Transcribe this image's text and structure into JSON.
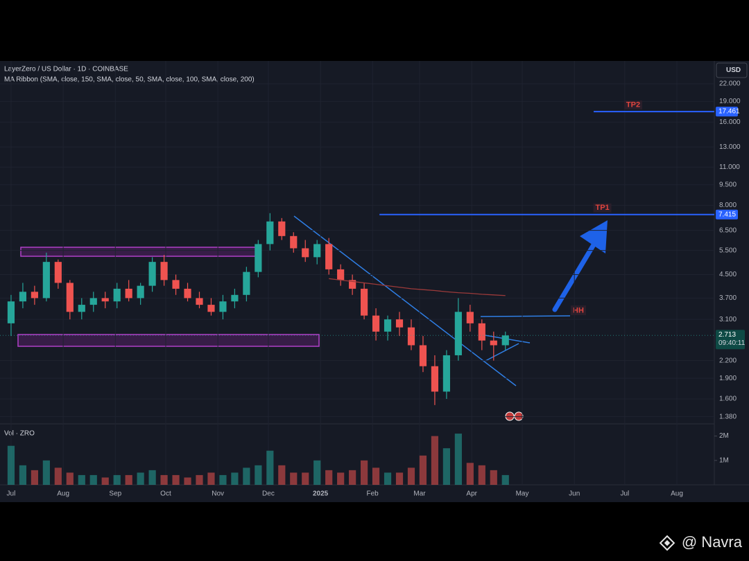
{
  "chart_data": {
    "type": "candlestick",
    "title": "LayerZero / US Dollar · 1D · COINBASE",
    "subtitle": "MA Ribbon (SMA, close, 150, SMA, close, 50, SMA, close, 100, SMA, close, 200)",
    "currency": "USD",
    "log_scale": true,
    "grid": true,
    "ylim": [
      1.3,
      26.6
    ],
    "yticks": [
      {
        "value": 22,
        "label": "22.000"
      },
      {
        "value": 19,
        "label": "19.000"
      },
      {
        "value": 16,
        "label": "16.000"
      },
      {
        "value": 13,
        "label": "13.000"
      },
      {
        "value": 11,
        "label": "11.000"
      },
      {
        "value": 9.5,
        "label": "9.500"
      },
      {
        "value": 8,
        "label": "8.000"
      },
      {
        "value": 6.5,
        "label": "6.500"
      },
      {
        "value": 5.5,
        "label": "5.500"
      },
      {
        "value": 4.5,
        "label": "4.500"
      },
      {
        "value": 3.7,
        "label": "3.700"
      },
      {
        "value": 3.1,
        "label": "3.100"
      },
      {
        "value": 2.2,
        "label": "2.200"
      },
      {
        "value": 1.9,
        "label": "1.900"
      },
      {
        "value": 1.6,
        "label": "1.600"
      },
      {
        "value": 1.38,
        "label": "1.380"
      }
    ],
    "xlim": [
      -0.94,
      59.75
    ],
    "xticks": [
      {
        "value": 0,
        "label": "Jul"
      },
      {
        "value": 4.43,
        "label": "Aug"
      },
      {
        "value": 8.86,
        "label": "Sep"
      },
      {
        "value": 13.14,
        "label": "Oct"
      },
      {
        "value": 17.57,
        "label": "Nov"
      },
      {
        "value": 21.86,
        "label": "Dec"
      },
      {
        "value": 26.29,
        "label": "2025"
      },
      {
        "value": 30.71,
        "label": "Feb"
      },
      {
        "value": 34.71,
        "label": "Mar"
      },
      {
        "value": 39.14,
        "label": "Apr"
      },
      {
        "value": 43.43,
        "label": "May"
      },
      {
        "value": 47.86,
        "label": "Jun"
      },
      {
        "value": 52.14,
        "label": "Jul"
      },
      {
        "value": 56.57,
        "label": "Aug"
      }
    ],
    "x": [
      0,
      1,
      2,
      3,
      4,
      5,
      6,
      7,
      8,
      9,
      10,
      11,
      12,
      13,
      14,
      15,
      16,
      17,
      18,
      19,
      20,
      21,
      22,
      23,
      24,
      25,
      26,
      27,
      28,
      29,
      30,
      31,
      32,
      33,
      34,
      35,
      36,
      37,
      38,
      39,
      40,
      41,
      42
    ],
    "open": [
      3.0,
      3.6,
      3.9,
      3.7,
      5.0,
      4.2,
      3.3,
      3.5,
      3.7,
      3.6,
      4.0,
      3.7,
      4.1,
      5.0,
      4.3,
      4.0,
      3.7,
      3.5,
      3.3,
      3.6,
      3.8,
      4.6,
      5.8,
      7.0,
      6.2,
      5.6,
      5.2,
      5.8,
      4.7,
      4.3,
      4.0,
      3.2,
      2.8,
      3.1,
      2.9,
      2.5,
      2.1,
      1.7,
      2.3,
      3.3,
      3.0,
      2.6,
      2.5
    ],
    "high": [
      3.8,
      4.2,
      4.1,
      5.4,
      5.1,
      4.3,
      3.7,
      3.9,
      3.9,
      4.2,
      4.3,
      4.2,
      5.2,
      5.3,
      4.5,
      4.2,
      3.9,
      3.7,
      3.8,
      4.0,
      4.8,
      6.0,
      7.5,
      7.2,
      6.4,
      6.0,
      6.0,
      6.1,
      4.9,
      4.5,
      4.2,
      3.4,
      3.2,
      3.3,
      3.1,
      2.7,
      2.3,
      2.4,
      3.7,
      3.5,
      3.1,
      2.8,
      2.8
    ],
    "low": [
      2.7,
      3.4,
      3.5,
      3.6,
      4.0,
      3.1,
      3.1,
      3.3,
      3.4,
      3.4,
      3.6,
      3.5,
      3.9,
      4.1,
      3.8,
      3.6,
      3.4,
      3.2,
      3.1,
      3.4,
      3.6,
      4.4,
      5.5,
      6.0,
      5.4,
      5.0,
      4.9,
      4.5,
      4.1,
      3.8,
      3.1,
      2.6,
      2.6,
      2.7,
      2.4,
      2.0,
      1.52,
      1.6,
      2.2,
      2.8,
      2.4,
      2.2,
      2.4
    ],
    "close": [
      3.6,
      3.9,
      3.7,
      5.0,
      4.2,
      3.3,
      3.5,
      3.7,
      3.6,
      4.0,
      3.7,
      4.1,
      5.0,
      4.3,
      4.0,
      3.7,
      3.5,
      3.3,
      3.6,
      3.8,
      4.6,
      5.8,
      7.0,
      6.2,
      5.6,
      5.2,
      5.8,
      4.7,
      4.3,
      4.0,
      3.2,
      2.8,
      3.1,
      2.9,
      2.5,
      2.1,
      1.7,
      2.3,
      3.3,
      3.0,
      2.6,
      2.5,
      2.713
    ],
    "up_color": "#26a69a",
    "down_color": "#ef5350",
    "ma": {
      "color": "#9c3a3a",
      "x": [
        27,
        28,
        29,
        30,
        31,
        32,
        33,
        34,
        35,
        36,
        37,
        38,
        39,
        40,
        41,
        42
      ],
      "values": [
        4.35,
        4.3,
        4.25,
        4.2,
        4.15,
        4.1,
        4.05,
        4.0,
        3.97,
        3.94,
        3.9,
        3.87,
        3.85,
        3.82,
        3.8,
        3.78
      ]
    },
    "levels": [
      {
        "label": "TP2",
        "value": 17.461,
        "start": 49.5,
        "color": "#2962ff"
      },
      {
        "label": "TP1",
        "value": 7.415,
        "start": 31.3,
        "color": "#2962ff"
      }
    ],
    "last_price": {
      "value": 2.713,
      "countdown": "09:40:11",
      "color": "#26a69a"
    },
    "volume": {
      "label": "Vol · ZRO",
      "ylim": [
        0,
        2500000
      ],
      "yticks": [
        {
          "value": 1000000,
          "label": "1M"
        },
        {
          "value": 2000000,
          "label": "2M"
        }
      ],
      "values": [
        1600000,
        800000,
        600000,
        1000000,
        700000,
        500000,
        400000,
        400000,
        300000,
        400000,
        400000,
        500000,
        600000,
        400000,
        400000,
        300000,
        400000,
        500000,
        400000,
        500000,
        700000,
        800000,
        1400000,
        800000,
        500000,
        500000,
        1000000,
        600000,
        500000,
        600000,
        1000000,
        700000,
        500000,
        500000,
        700000,
        1200000,
        2000000,
        1500000,
        2100000,
        900000,
        800000,
        600000,
        400000
      ]
    }
  },
  "annotation_hh": "HH",
  "watermark": "@ Navra"
}
